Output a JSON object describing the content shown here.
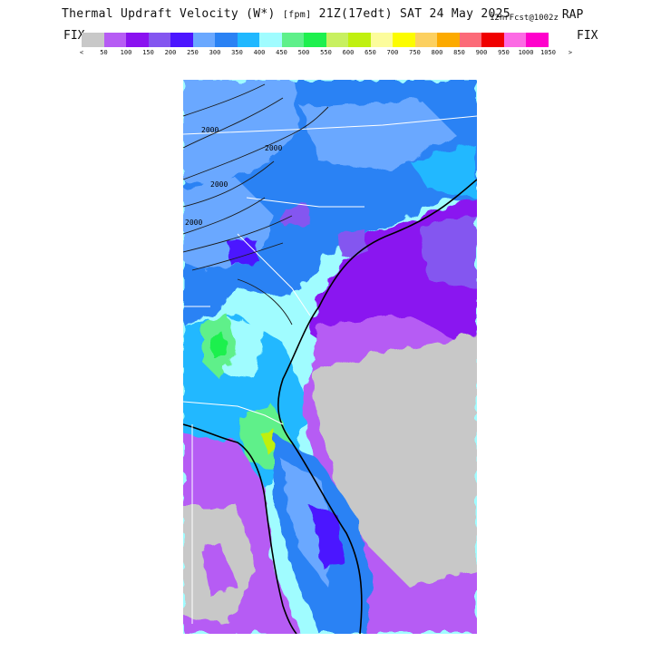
{
  "header": {
    "title": "Thermal Updraft Velocity (W*)",
    "units": "[fpm]",
    "valid_time": "21Z(17edt) SAT 24 May 2025",
    "forecast": "12hrFcst@1002z",
    "model": "RAP",
    "fix_left": "FIX",
    "fix_right": "FIX"
  },
  "legend": {
    "colors": [
      "#c8c8c8",
      "#b65cf4",
      "#8a12f0",
      "#8456f0",
      "#4c16ff",
      "#6aa8ff",
      "#2a82f4",
      "#20b8ff",
      "#a0fcff",
      "#5ef08a",
      "#1ef04e",
      "#c8f060",
      "#c0f010",
      "#fcfc9c",
      "#fcfc00",
      "#fcd060",
      "#fcaa00",
      "#fc6a78",
      "#f00000",
      "#fc6ae4",
      "#ff00cc"
    ],
    "tick_labels": [
      "<",
      "50",
      "100",
      "150",
      "200",
      "250",
      "300",
      "350",
      "400",
      "450",
      "500",
      "550",
      "600",
      "650",
      "700",
      "750",
      "800",
      "850",
      "900",
      "950",
      "1000",
      "1050",
      ">"
    ]
  },
  "map": {
    "contour_labels": [
      "2000",
      "2000",
      "2000",
      "2000"
    ]
  }
}
